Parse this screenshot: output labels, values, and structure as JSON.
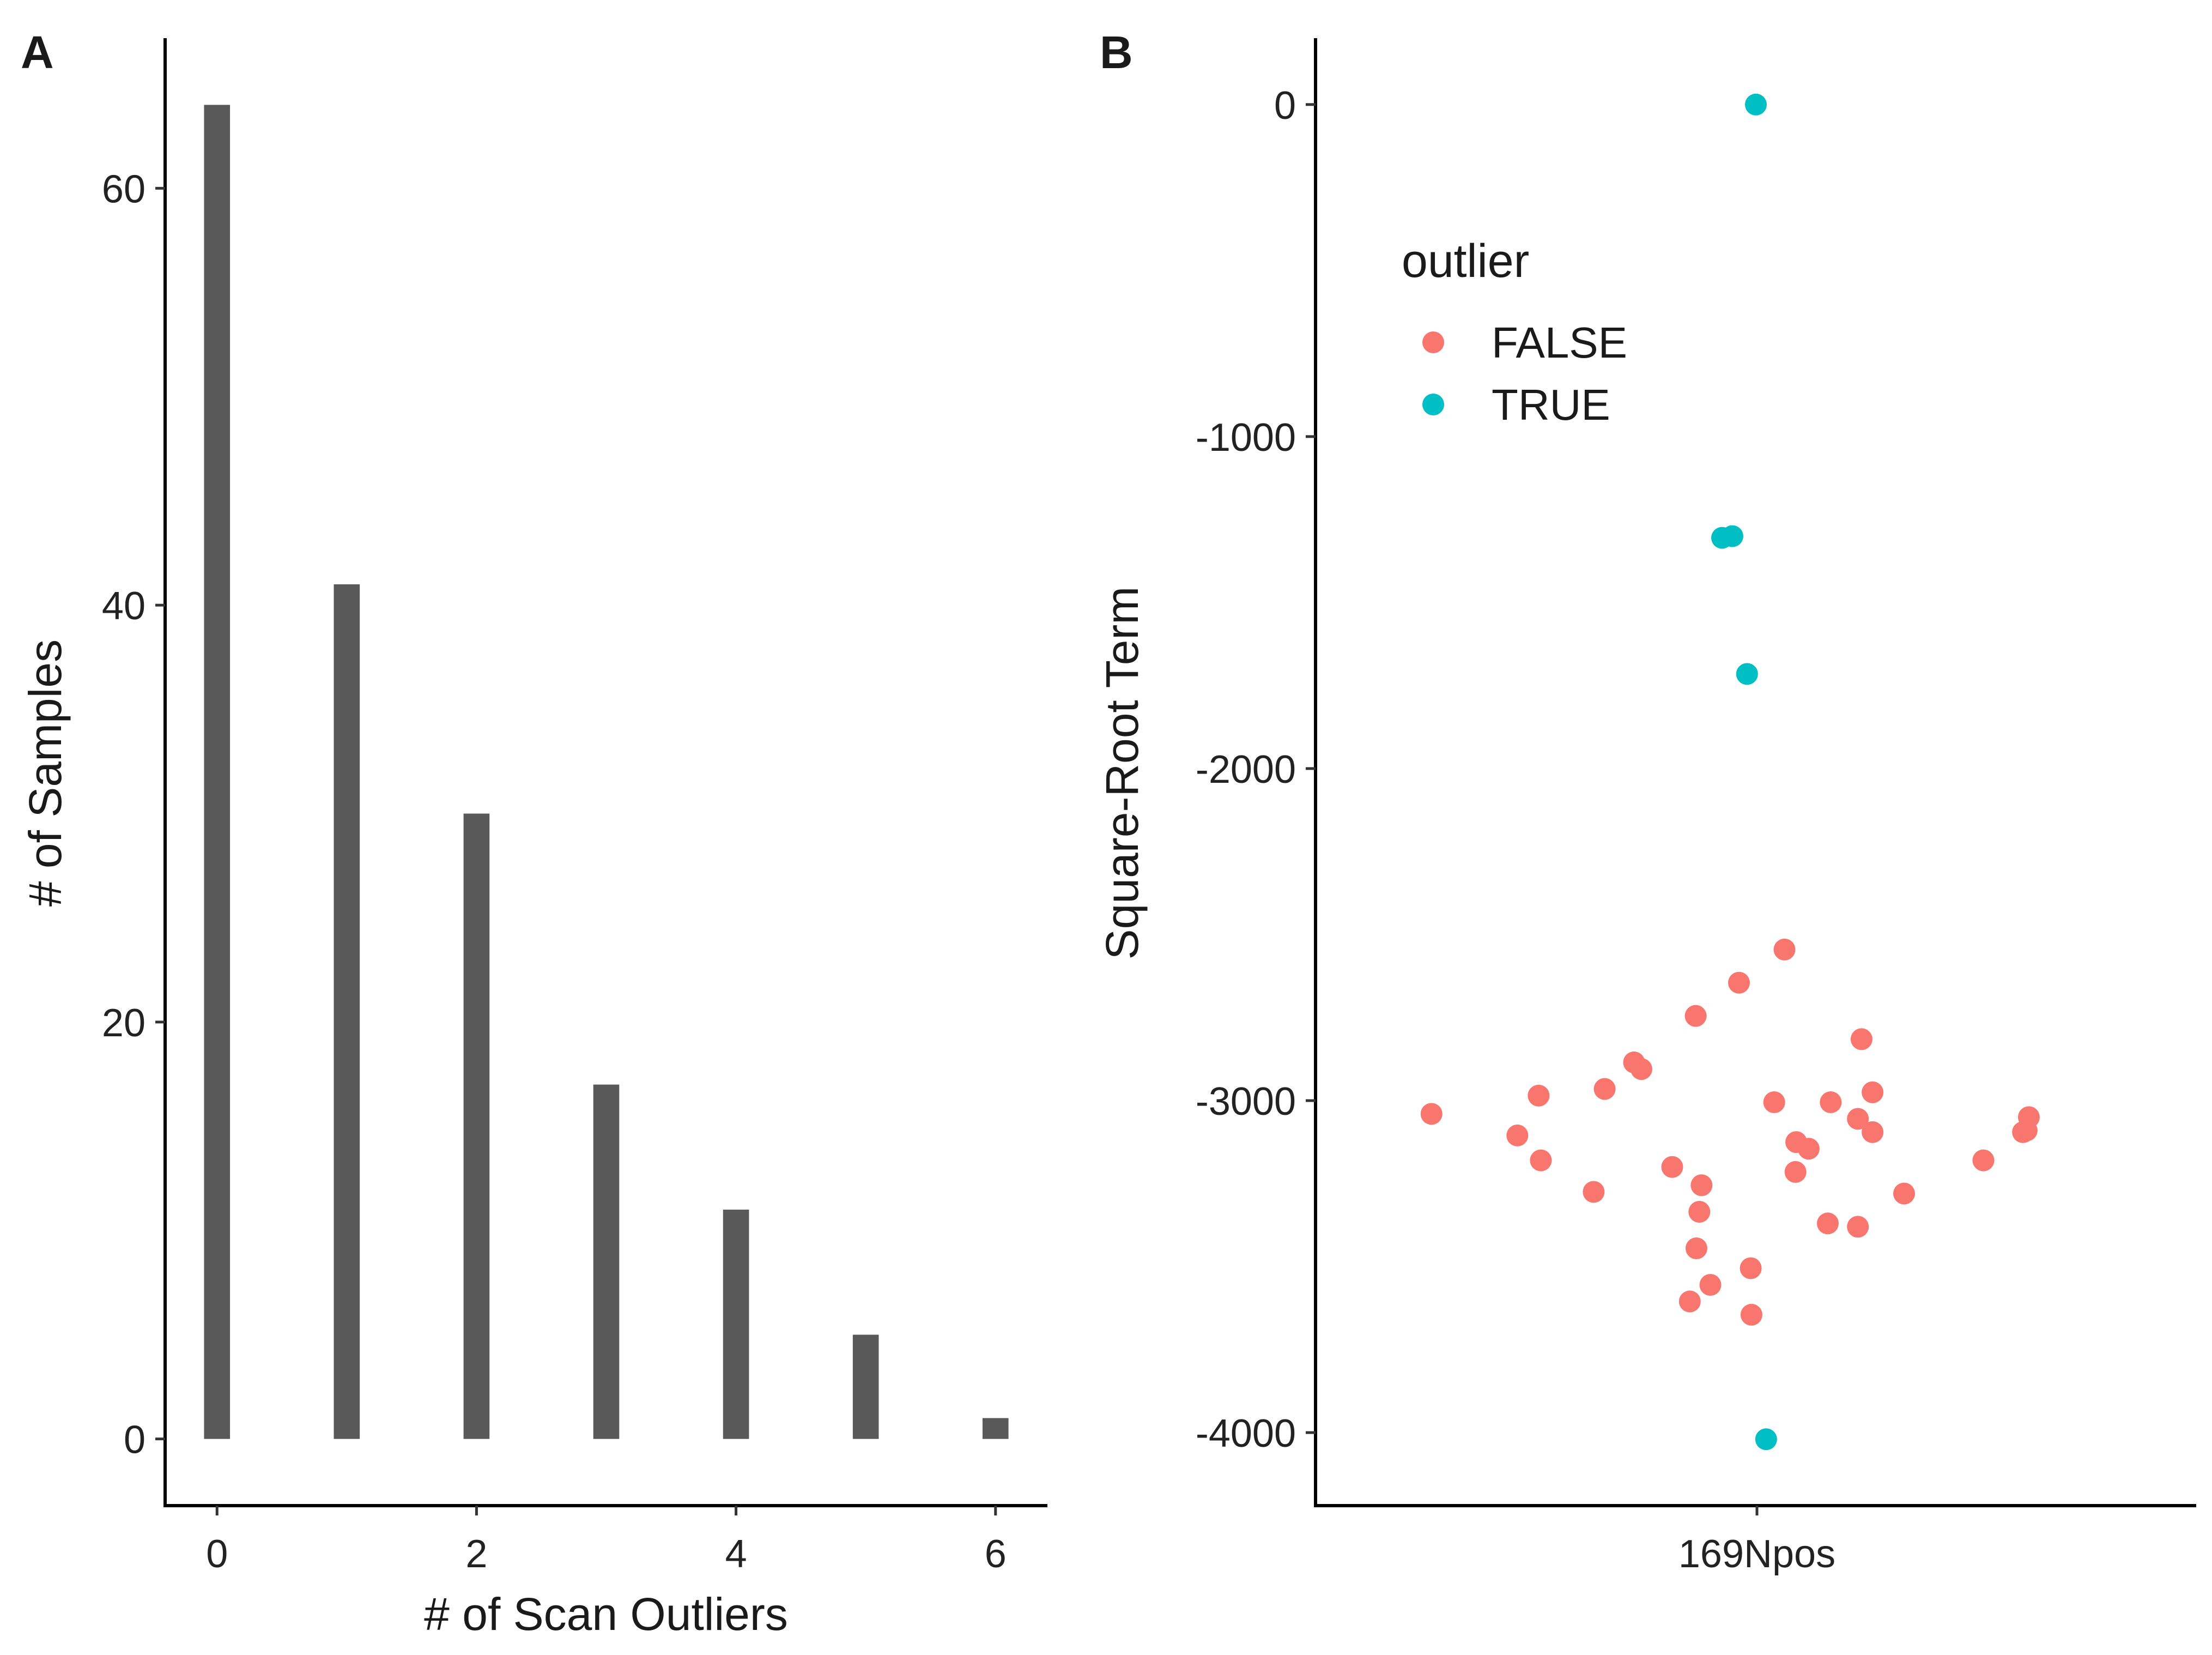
{
  "colors": {
    "bar": "#595959",
    "false_point": "#F8766D",
    "true_point": "#00BFC4",
    "axis": "#000000"
  },
  "panels": {
    "a_label": "A",
    "b_label": "B"
  },
  "chart_data": [
    {
      "type": "bar",
      "panel": "A",
      "title": "",
      "xlabel": "# of Scan Outliers",
      "ylabel": "# of Samples",
      "categories": [
        "0",
        "1",
        "2",
        "3",
        "4",
        "5",
        "6"
      ],
      "x": [
        0,
        1,
        2,
        3,
        4,
        5,
        6
      ],
      "values": [
        64,
        41,
        30,
        17,
        11,
        5,
        1
      ],
      "xlim": [
        -0.4,
        6.4
      ],
      "ylim": [
        -3.2,
        67.2
      ],
      "x_ticks": [
        0,
        2,
        4,
        6
      ],
      "x_tick_labels": [
        "0",
        "2",
        "4",
        "6"
      ],
      "y_ticks": [
        0,
        20,
        40,
        60
      ],
      "y_tick_labels": [
        "0",
        "20",
        "40",
        "60"
      ],
      "bar_width": 0.2
    },
    {
      "type": "scatter",
      "panel": "B",
      "title": "",
      "xlabel": "",
      "ylabel": "Square-Root Term",
      "x_category": "169Npos",
      "xlim": [
        -0.6,
        0.6
      ],
      "ylim": [
        -4220,
        200
      ],
      "y_ticks": [
        0,
        -1000,
        -2000,
        -3000,
        -4000
      ],
      "y_tick_labels": [
        "0",
        "-1000",
        "-2000",
        "-3000",
        "-4000"
      ],
      "legend": {
        "title": "outlier",
        "position": "top-left",
        "entries": [
          {
            "label": "FALSE",
            "color": "#F8766D"
          },
          {
            "label": "TRUE",
            "color": "#00BFC4"
          }
        ]
      },
      "series": [
        {
          "name": "TRUE",
          "color": "#00BFC4",
          "points": [
            [
              0.0,
              0
            ],
            [
              -0.046,
              -1305
            ],
            [
              -0.032,
              -1300
            ],
            [
              -0.012,
              -1715
            ],
            [
              0.014,
              -4020
            ]
          ]
        },
        {
          "name": "FALSE",
          "color": "#F8766D",
          "points": [
            [
              0.039,
              -2545
            ],
            [
              -0.023,
              -2645
            ],
            [
              -0.082,
              -2745
            ],
            [
              0.144,
              -2815
            ],
            [
              -0.166,
              -2885
            ],
            [
              -0.156,
              -2905
            ],
            [
              -0.206,
              -2965
            ],
            [
              -0.296,
              -2985
            ],
            [
              0.025,
              -3005
            ],
            [
              0.102,
              -3005
            ],
            [
              0.159,
              -2975
            ],
            [
              -0.442,
              -3040
            ],
            [
              0.139,
              -3055
            ],
            [
              -0.325,
              -3105
            ],
            [
              0.055,
              -3125
            ],
            [
              0.072,
              -3145
            ],
            [
              0.159,
              -3095
            ],
            [
              -0.293,
              -3180
            ],
            [
              -0.114,
              -3200
            ],
            [
              0.054,
              -3215
            ],
            [
              0.202,
              -3280
            ],
            [
              -0.221,
              -3275
            ],
            [
              -0.074,
              -3255
            ],
            [
              -0.077,
              -3335
            ],
            [
              0.098,
              -3370
            ],
            [
              0.139,
              -3380
            ],
            [
              -0.081,
              -3445
            ],
            [
              -0.007,
              -3505
            ],
            [
              -0.062,
              -3555
            ],
            [
              -0.09,
              -3605
            ],
            [
              -0.006,
              -3645
            ],
            [
              0.31,
              -3180
            ],
            [
              0.372,
              -3050
            ],
            [
              0.369,
              -3090
            ],
            [
              0.364,
              -3095
            ]
          ]
        }
      ]
    }
  ]
}
